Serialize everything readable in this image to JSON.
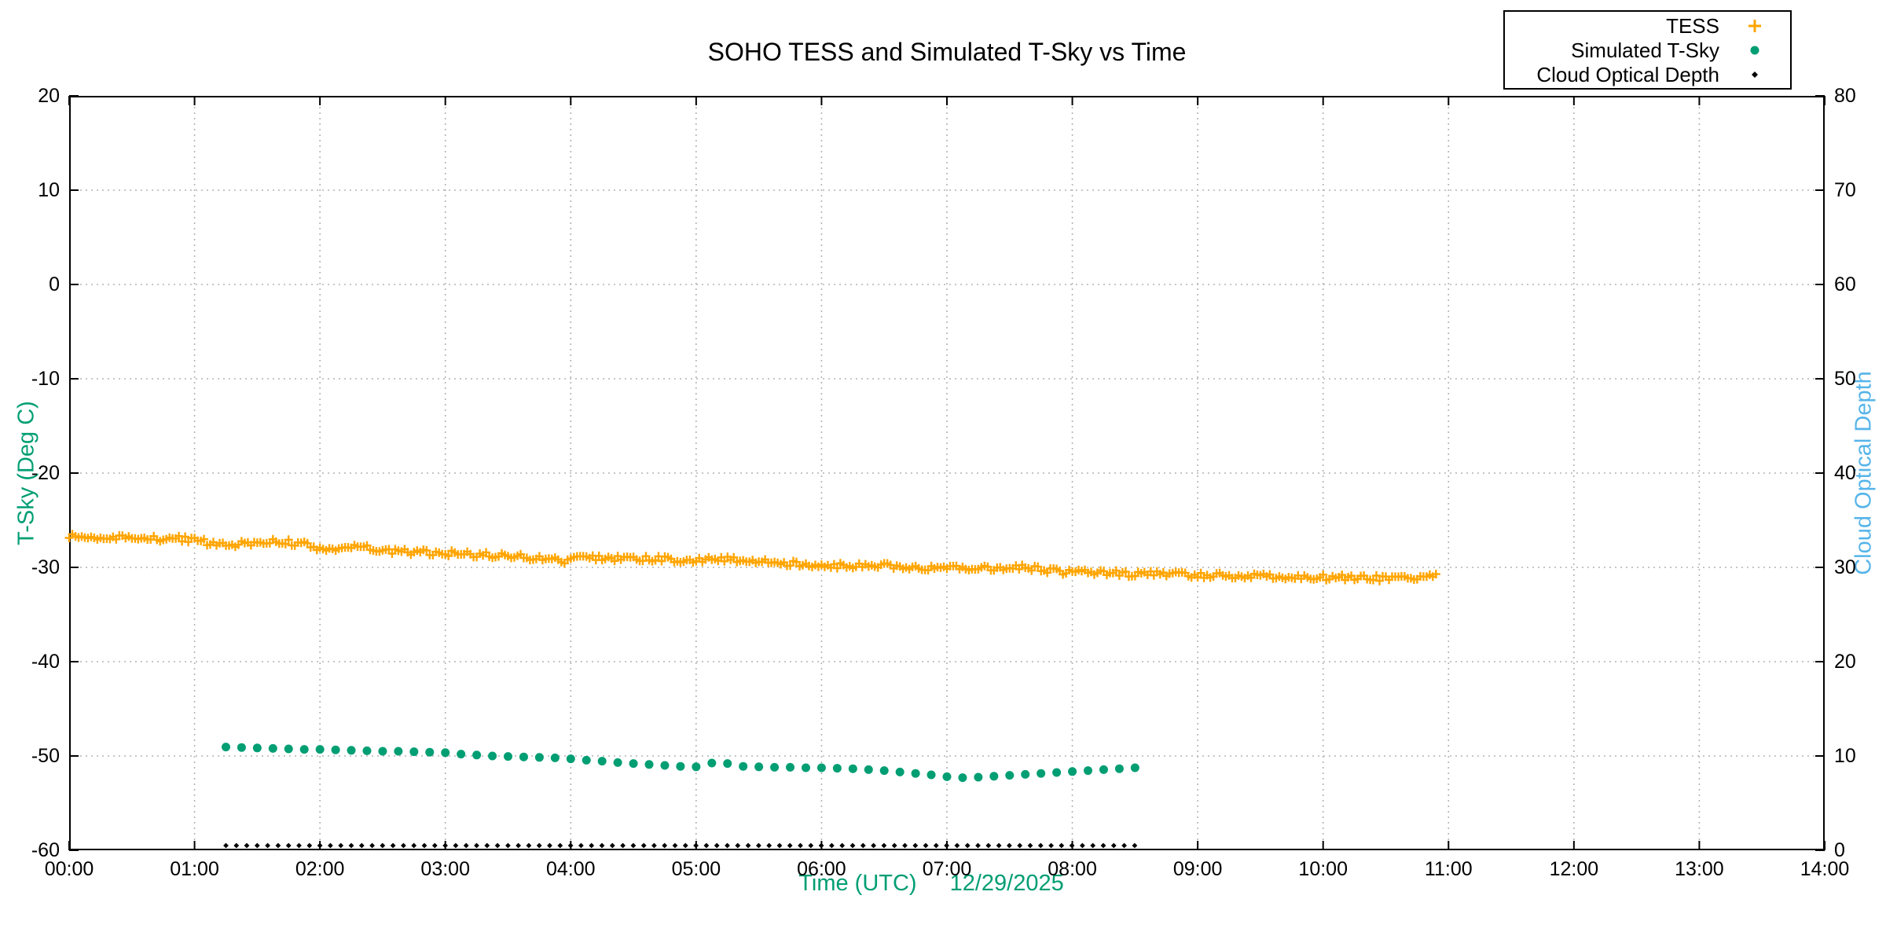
{
  "chart_data": {
    "type": "scatter",
    "title": "SOHO TESS and Simulated T-Sky vs Time",
    "xlabel": "Time (UTC)",
    "xlabel_date": "12/29/2025",
    "ylabel_left": "T-Sky (Deg C)",
    "ylabel_right": "Cloud Optical Depth",
    "grid": true,
    "legend_position": "top-right",
    "colors": {
      "tess_orange": "#FFA500",
      "tsky_green": "#009E73",
      "cloud_blue_label": "#56B4E9",
      "grid_gray": "#b4b4b4",
      "axis_black": "#000000"
    },
    "x_axis": {
      "min_hours": 0,
      "max_hours": 14,
      "tick_interval_hours": 1,
      "tick_labels": [
        "00:00",
        "01:00",
        "02:00",
        "03:00",
        "04:00",
        "05:00",
        "06:00",
        "07:00",
        "08:00",
        "09:00",
        "10:00",
        "11:00",
        "12:00",
        "13:00",
        "14:00"
      ]
    },
    "y_axis_left": {
      "min": -60,
      "max": 20,
      "tick_interval": 10,
      "tick_labels": [
        "20",
        "10",
        "0",
        "-10",
        "-20",
        "-30",
        "-40",
        "-50",
        "-60"
      ]
    },
    "y_axis_right": {
      "min": 0,
      "max": 80,
      "tick_interval": 10,
      "tick_labels": [
        "80",
        "70",
        "60",
        "50",
        "40",
        "30",
        "20",
        "10",
        "0"
      ]
    },
    "series": [
      {
        "name": "TESS",
        "marker": "plus",
        "color": "#FFA500",
        "axis": "left",
        "start_hour": 0.0,
        "end_hour": 10.9,
        "marker_interval_hours": 0.025,
        "noise_amplitude_degc": 0.3,
        "trend_points": [
          [
            0.0,
            -26.7
          ],
          [
            0.3,
            -26.85
          ],
          [
            0.6,
            -27.0
          ],
          [
            0.8,
            -26.9
          ],
          [
            1.0,
            -27.05
          ],
          [
            1.15,
            -27.5
          ],
          [
            1.3,
            -27.65
          ],
          [
            1.5,
            -27.3
          ],
          [
            1.7,
            -27.25
          ],
          [
            1.9,
            -27.6
          ],
          [
            2.05,
            -28.2
          ],
          [
            2.2,
            -27.75
          ],
          [
            2.35,
            -27.9
          ],
          [
            2.6,
            -28.3
          ],
          [
            2.9,
            -28.45
          ],
          [
            3.2,
            -28.6
          ],
          [
            3.5,
            -28.75
          ],
          [
            3.8,
            -29.1
          ],
          [
            3.95,
            -29.35
          ],
          [
            4.1,
            -28.95
          ],
          [
            4.4,
            -29.05
          ],
          [
            4.7,
            -29.1
          ],
          [
            5.0,
            -29.25
          ],
          [
            5.2,
            -29.1
          ],
          [
            5.5,
            -29.35
          ],
          [
            5.8,
            -29.6
          ],
          [
            6.0,
            -29.7
          ],
          [
            6.2,
            -29.85
          ],
          [
            6.4,
            -29.65
          ],
          [
            6.6,
            -29.9
          ],
          [
            6.8,
            -30.1
          ],
          [
            7.0,
            -29.85
          ],
          [
            7.2,
            -30.15
          ],
          [
            7.4,
            -30.05
          ],
          [
            7.6,
            -29.95
          ],
          [
            7.8,
            -30.3
          ],
          [
            8.0,
            -30.55
          ],
          [
            8.2,
            -30.45
          ],
          [
            8.4,
            -30.7
          ],
          [
            8.6,
            -30.6
          ],
          [
            8.8,
            -30.75
          ],
          [
            9.0,
            -30.85
          ],
          [
            9.2,
            -30.8
          ],
          [
            9.4,
            -30.9
          ],
          [
            9.6,
            -30.95
          ],
          [
            9.8,
            -31.0
          ],
          [
            10.0,
            -31.05
          ],
          [
            10.2,
            -31.1
          ],
          [
            10.4,
            -31.15
          ],
          [
            10.6,
            -31.2
          ],
          [
            10.75,
            -31.0
          ],
          [
            10.9,
            -30.85
          ]
        ]
      },
      {
        "name": "Simulated T-Sky",
        "marker": "dot",
        "color": "#009E73",
        "axis": "left",
        "points": [
          [
            1.25,
            -49.05
          ],
          [
            1.375,
            -49.1
          ],
          [
            1.5,
            -49.15
          ],
          [
            1.625,
            -49.2
          ],
          [
            1.75,
            -49.25
          ],
          [
            1.875,
            -49.3
          ],
          [
            2.0,
            -49.3
          ],
          [
            2.125,
            -49.35
          ],
          [
            2.25,
            -49.4
          ],
          [
            2.375,
            -49.45
          ],
          [
            2.5,
            -49.5
          ],
          [
            2.625,
            -49.5
          ],
          [
            2.75,
            -49.55
          ],
          [
            2.875,
            -49.6
          ],
          [
            3.0,
            -49.65
          ],
          [
            3.125,
            -49.8
          ],
          [
            3.25,
            -49.9
          ],
          [
            3.375,
            -50.0
          ],
          [
            3.5,
            -50.05
          ],
          [
            3.625,
            -50.1
          ],
          [
            3.75,
            -50.15
          ],
          [
            3.875,
            -50.2
          ],
          [
            4.0,
            -50.3
          ],
          [
            4.125,
            -50.45
          ],
          [
            4.25,
            -50.55
          ],
          [
            4.375,
            -50.7
          ],
          [
            4.5,
            -50.8
          ],
          [
            4.625,
            -50.9
          ],
          [
            4.75,
            -51.0
          ],
          [
            4.875,
            -51.1
          ],
          [
            5.0,
            -51.15
          ],
          [
            5.125,
            -50.75
          ],
          [
            5.25,
            -50.8
          ],
          [
            5.375,
            -51.1
          ],
          [
            5.5,
            -51.15
          ],
          [
            5.625,
            -51.2
          ],
          [
            5.75,
            -51.2
          ],
          [
            5.875,
            -51.25
          ],
          [
            6.0,
            -51.25
          ],
          [
            6.125,
            -51.3
          ],
          [
            6.25,
            -51.35
          ],
          [
            6.375,
            -51.45
          ],
          [
            6.5,
            -51.55
          ],
          [
            6.625,
            -51.7
          ],
          [
            6.75,
            -51.85
          ],
          [
            6.875,
            -52.0
          ],
          [
            7.0,
            -52.2
          ],
          [
            7.125,
            -52.3
          ],
          [
            7.25,
            -52.25
          ],
          [
            7.375,
            -52.15
          ],
          [
            7.5,
            -52.05
          ],
          [
            7.625,
            -51.95
          ],
          [
            7.75,
            -51.85
          ],
          [
            7.875,
            -51.75
          ],
          [
            8.0,
            -51.65
          ],
          [
            8.125,
            -51.55
          ],
          [
            8.25,
            -51.45
          ],
          [
            8.375,
            -51.35
          ],
          [
            8.5,
            -51.25
          ]
        ]
      },
      {
        "name": "Cloud Optical Depth",
        "marker": "small-diamond",
        "color": "#000000",
        "axis": "right",
        "constant_value": 0.5,
        "start_hour": 1.25,
        "end_hour": 8.5,
        "interval_hours": 0.0833
      }
    ]
  }
}
